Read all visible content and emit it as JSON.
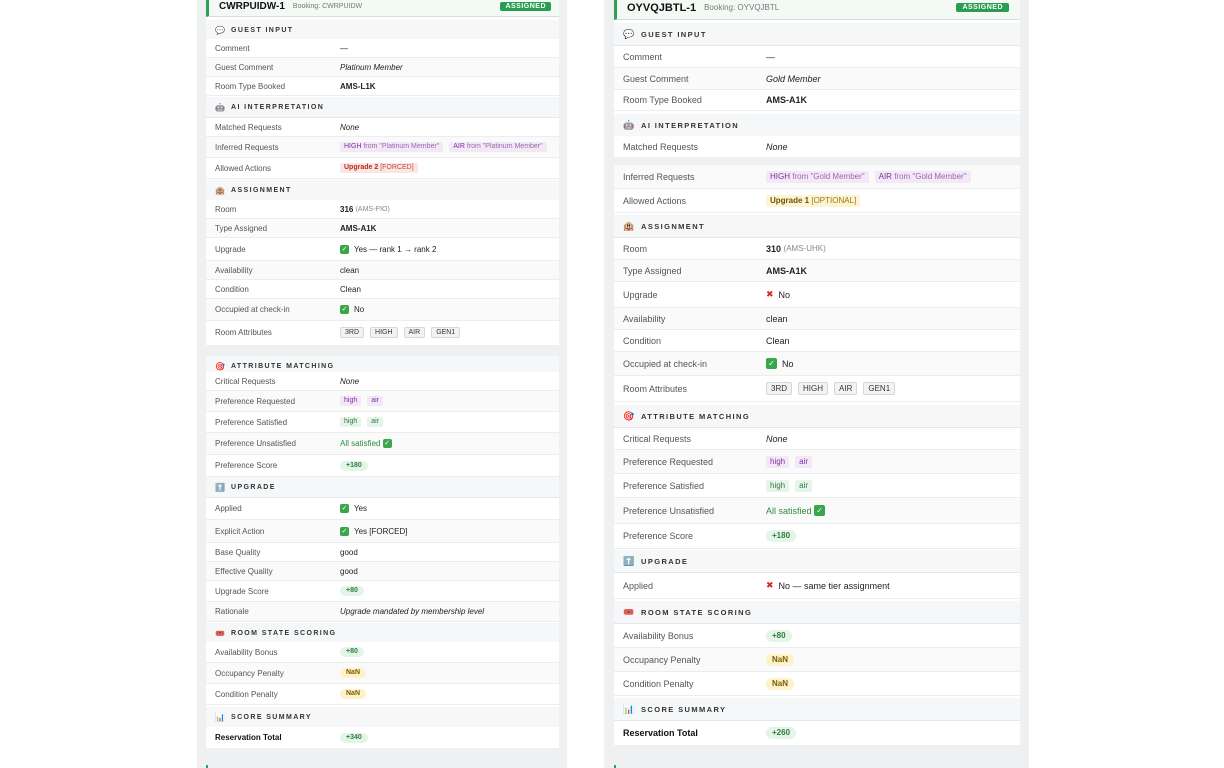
{
  "left": {
    "id": "CWRPUIDW-1",
    "booking": "Booking: CWRPUIDW",
    "status": "ASSIGNED",
    "sections": {
      "guest_input": "GUEST INPUT",
      "ai": "AI INTERPRETATION",
      "assignment": "ASSIGNMENT",
      "attr": "ATTRIBUTE MATCHING",
      "upgrade": "UPGRADE",
      "room_state": "ROOM STATE SCORING",
      "summary": "SCORE SUMMARY"
    },
    "labels": {
      "comment": "Comment",
      "guest_comment": "Guest Comment",
      "room_type_booked": "Room Type Booked",
      "matched": "Matched Requests",
      "inferred": "Inferred Requests",
      "allowed": "Allowed Actions",
      "room": "Room",
      "type_assigned": "Type Assigned",
      "upgrade": "Upgrade",
      "availability": "Availability",
      "condition": "Condition",
      "occupied": "Occupied at check-in",
      "room_attributes": "Room Attributes",
      "critical": "Critical Requests",
      "pref_req": "Preference Requested",
      "pref_sat": "Preference Satisfied",
      "pref_unsat": "Preference Unsatisfied",
      "pref_score": "Preference Score",
      "applied": "Applied",
      "explicit": "Explicit Action",
      "base_q": "Base Quality",
      "eff_q": "Effective Quality",
      "up_score": "Upgrade Score",
      "rationale": "Rationale",
      "avail_bonus": "Availability Bonus",
      "occ_penalty": "Occupancy Penalty",
      "cond_penalty": "Condition Penalty",
      "total": "Reservation Total"
    },
    "values": {
      "comment": "—",
      "guest_comment": "Platinum Member",
      "room_type_booked": "AMS-L1K",
      "matched": "None",
      "inferred": [
        {
          "code": "HIGH",
          "src": "from \"Platinum Member\""
        },
        {
          "code": "AIR",
          "src": "from \"Platinum Member\""
        }
      ],
      "allowed_action": "Upgrade 2",
      "allowed_tag": "[FORCED]",
      "room_no": "316",
      "room_code": "(AMS-PIO)",
      "type_assigned": "AMS-A1K",
      "upgrade": "Yes — rank 1 → rank 2",
      "availability": "clean",
      "condition": "Clean",
      "occupied": "No",
      "room_attributes": [
        "3RD",
        "HIGH",
        "AIR",
        "GEN1"
      ],
      "critical": "None",
      "pref_req": [
        "high",
        "air"
      ],
      "pref_sat": [
        "high",
        "air"
      ],
      "pref_unsat": "All satisfied",
      "pref_score": "+180",
      "applied": "Yes",
      "explicit": "Yes [FORCED]",
      "base_q": "good",
      "eff_q": "good",
      "up_score": "+80",
      "rationale": "Upgrade mandated by membership level",
      "avail_bonus": "+80",
      "occ_penalty": "NaN",
      "cond_penalty": "NaN",
      "total": "+340"
    }
  },
  "right": {
    "id": "OYVQJBTL-1",
    "booking": "Booking: OYVQJBTL",
    "status": "ASSIGNED",
    "sections": {
      "guest_input": "GUEST INPUT",
      "ai": "AI INTERPRETATION",
      "assignment": "ASSIGNMENT",
      "attr": "ATTRIBUTE MATCHING",
      "upgrade": "UPGRADE",
      "room_state": "ROOM STATE SCORING",
      "summary": "SCORE SUMMARY"
    },
    "labels": {
      "comment": "Comment",
      "guest_comment": "Guest Comment",
      "room_type_booked": "Room Type Booked",
      "matched": "Matched Requests",
      "inferred": "Inferred Requests",
      "allowed": "Allowed Actions",
      "room": "Room",
      "type_assigned": "Type Assigned",
      "upgrade": "Upgrade",
      "availability": "Availability",
      "condition": "Condition",
      "occupied": "Occupied at check-in",
      "room_attributes": "Room Attributes",
      "critical": "Critical Requests",
      "pref_req": "Preference Requested",
      "pref_sat": "Preference Satisfied",
      "pref_unsat": "Preference Unsatisfied",
      "pref_score": "Preference Score",
      "applied": "Applied",
      "avail_bonus": "Availability Bonus",
      "occ_penalty": "Occupancy Penalty",
      "cond_penalty": "Condition Penalty",
      "total": "Reservation Total"
    },
    "values": {
      "comment": "—",
      "guest_comment": "Gold Member",
      "room_type_booked": "AMS-A1K",
      "matched": "None",
      "inferred": [
        {
          "code": "HIGH",
          "src": "from \"Gold Member\""
        },
        {
          "code": "AIR",
          "src": "from \"Gold Member\""
        }
      ],
      "allowed_action": "Upgrade 1",
      "allowed_tag": "[OPTIONAL]",
      "room_no": "310",
      "room_code": "(AMS-UHK)",
      "type_assigned": "AMS-A1K",
      "upgrade": "No",
      "availability": "clean",
      "condition": "Clean",
      "occupied": "No",
      "room_attributes": [
        "3RD",
        "HIGH",
        "AIR",
        "GEN1"
      ],
      "critical": "None",
      "pref_req": [
        "high",
        "air"
      ],
      "pref_sat": [
        "high",
        "air"
      ],
      "pref_unsat": "All satisfied",
      "pref_score": "+180",
      "applied": "No — same tier assignment",
      "avail_bonus": "+80",
      "occ_penalty": "NaN",
      "cond_penalty": "NaN",
      "total": "+260"
    }
  },
  "icons": {
    "guest_input": "speech-bubble-icon",
    "ai": "robot-icon",
    "assignment": "hotel-icon",
    "attr": "target-icon",
    "upgrade": "up-arrow-icon",
    "room_state": "ticket-icon",
    "summary": "bar-chart-icon"
  },
  "colors": {
    "assigned_badge": "#2a9d50",
    "accent_green": "#2fa05a",
    "forced_red": "#b52b1d",
    "tag_purple": "#7b2f9e"
  }
}
